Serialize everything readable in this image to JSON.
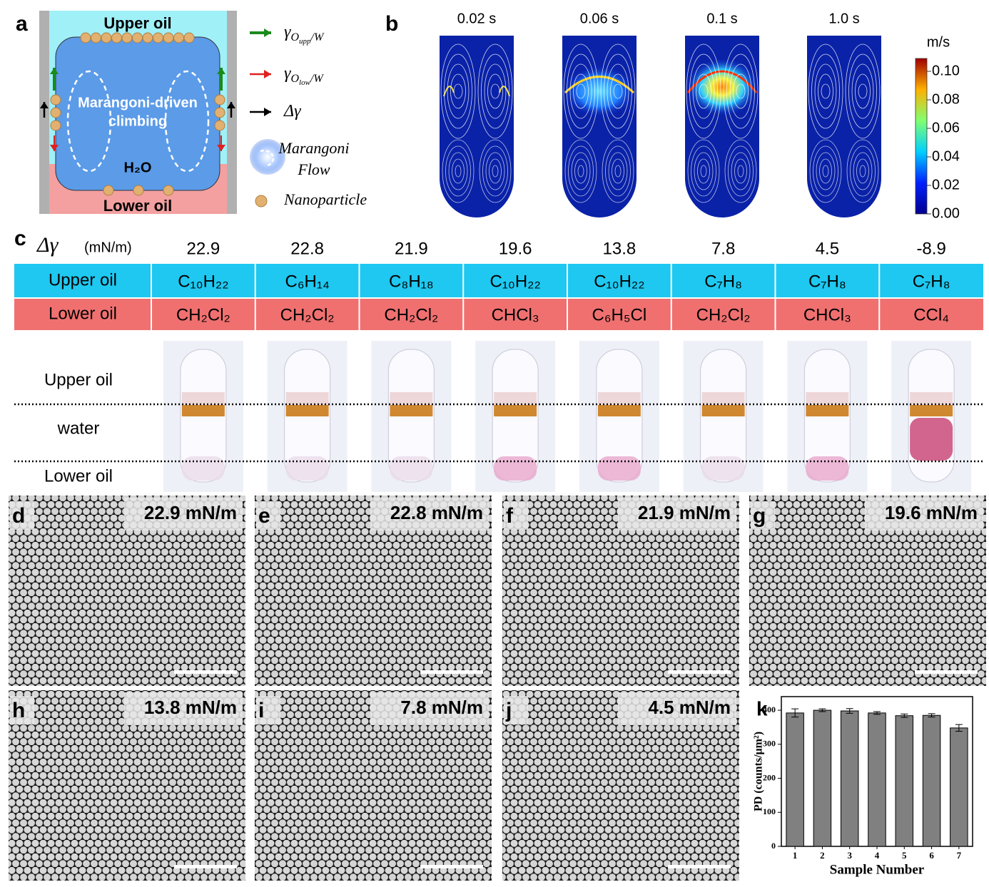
{
  "panel_a": {
    "label": "a",
    "upper_oil": "Upper oil",
    "lower_oil": "Lower oil",
    "center_text": [
      "Marangoni-driven",
      "climbing"
    ],
    "water": "H₂O",
    "legend": [
      {
        "symbol": "γ",
        "subscript": "O",
        "subsubscript": "upp",
        "tail": "/W"
      },
      {
        "symbol": "γ",
        "subscript": "O",
        "subsubscript": "low",
        "tail": "/W"
      },
      {
        "symbol": "Δγ"
      },
      {
        "lines": [
          "Marangoni",
          "Flow"
        ]
      },
      {
        "text": "Nanoparticle"
      }
    ]
  },
  "panel_b": {
    "label": "b",
    "times": [
      "0.02 s",
      "0.06 s",
      "0.1 s",
      "1.0 s"
    ],
    "unit": "m/s",
    "colorbar_ticks": [
      "0.10",
      "0.08",
      "0.06",
      "0.04",
      "0.02",
      "0.00"
    ]
  },
  "panel_c": {
    "label": "c",
    "delta_symbol": "Δγ",
    "unit": "(mN/m)",
    "row_labels": [
      "Upper oil",
      "Lower oil"
    ],
    "columns": [
      {
        "delta": "22.9",
        "upper": "C₁₀H₂₂",
        "lower": "CH₂Cl₂"
      },
      {
        "delta": "22.8",
        "upper": "C₆H₁₄",
        "lower": "CH₂Cl₂"
      },
      {
        "delta": "21.9",
        "upper": "C₈H₁₈",
        "lower": "CH₂Cl₂"
      },
      {
        "delta": "19.6",
        "upper": "C₁₀H₂₂",
        "lower": "CHCl₃"
      },
      {
        "delta": "13.8",
        "upper": "C₁₀H₂₂",
        "lower": "C₆H₅Cl"
      },
      {
        "delta": "7.8",
        "upper": "C₇H₈",
        "lower": "CH₂Cl₂"
      },
      {
        "delta": "4.5",
        "upper": "C₇H₈",
        "lower": "CHCl₃"
      },
      {
        "delta": "-8.9",
        "upper": "C₇H₈",
        "lower": "CCl₄"
      }
    ],
    "photo_labels": [
      "Upper oil",
      "water",
      "Lower oil"
    ]
  },
  "sem_panels": [
    {
      "label": "d",
      "value": "22.9 mN/m"
    },
    {
      "label": "e",
      "value": "22.8 mN/m"
    },
    {
      "label": "f",
      "value": "21.9 mN/m"
    },
    {
      "label": "g",
      "value": "19.6 mN/m"
    },
    {
      "label": "h",
      "value": "13.8 mN/m"
    },
    {
      "label": "i",
      "value": "7.8 mN/m"
    },
    {
      "label": "j",
      "value": "4.5 mN/m"
    }
  ],
  "chart_data": {
    "type": "bar",
    "label": "k",
    "ylabel": "PD (counts/μm²)",
    "xlabel": "Sample Number",
    "categories": [
      "1",
      "2",
      "3",
      "4",
      "5",
      "6",
      "7"
    ],
    "values": [
      392,
      400,
      398,
      392,
      384,
      385,
      348
    ],
    "errors": [
      12,
      4,
      7,
      4,
      5,
      5,
      10
    ],
    "color": "#808080",
    "ylim": [
      0,
      440
    ],
    "yticks": [
      0,
      100,
      200,
      300,
      400
    ]
  }
}
